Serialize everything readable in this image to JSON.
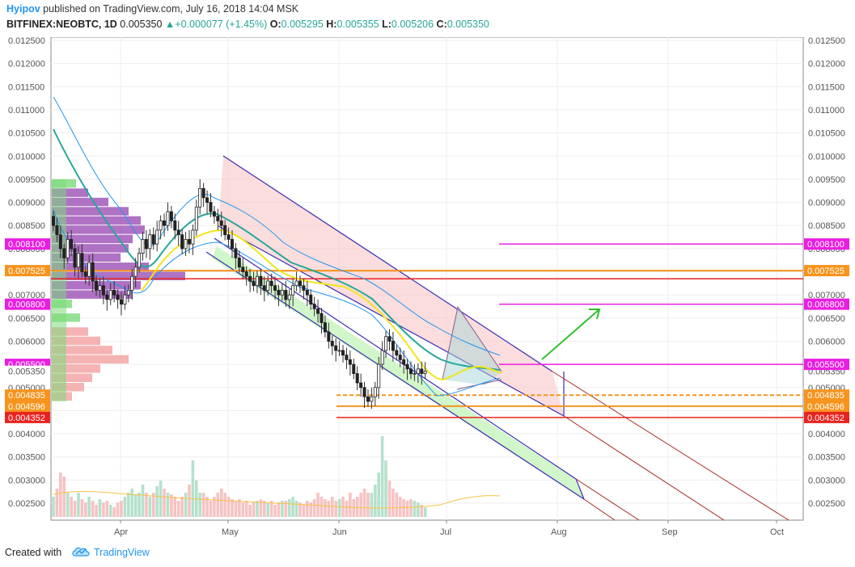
{
  "header": {
    "author": "Hyipov",
    "published_text": "published on TradingView.com, July 16, 2018 14:04 MSK",
    "symbol": "BITFINEX:NEOBTC, 1D",
    "price": "0.005350",
    "change": "+0.000077 (+1.45%)",
    "o_label": "O:",
    "o_value": "0.005295",
    "h_label": "H:",
    "h_value": "0.005355",
    "l_label": "L:",
    "l_value": "0.005206",
    "c_label": "C:",
    "c_value": "0.005350",
    "up_arrow": "▲"
  },
  "footer": {
    "created_with": "Created with",
    "brand": "TradingView"
  },
  "chart_data": {
    "type": "candlestick",
    "symbol": "NEOBTC",
    "exchange": "BITFINEX",
    "timeframe": "1D",
    "x_labels": [
      "Apr",
      "May",
      "Jun",
      "Jul",
      "Aug",
      "Sep",
      "Oct"
    ],
    "y_ticks": [
      "0.012500",
      "0.012000",
      "0.011500",
      "0.011000",
      "0.010500",
      "0.010000",
      "0.009500",
      "0.009000",
      "0.008500",
      "0.008000",
      "0.007500",
      "0.007000",
      "0.006500",
      "0.006000",
      "0.005500",
      "0.005000",
      "0.004500",
      "0.004000",
      "0.003500",
      "0.003000",
      "0.002500"
    ],
    "right_extra_tick": "0.005350",
    "left_tags": [
      {
        "text": "0.008100",
        "color": "#e91ee0"
      },
      {
        "text": "0.007525",
        "color": "#f7941d"
      },
      {
        "text": "0.006800",
        "color": "#e91ee0"
      },
      {
        "text": "0.005500",
        "color": "#e91ee0"
      },
      {
        "text": "0.005350",
        "color": "none"
      },
      {
        "text": "0.004835",
        "color": "#f7941d"
      },
      {
        "text": "0.004596",
        "color": "#f7941d"
      },
      {
        "text": "0.004352",
        "color": "#e8231f"
      }
    ],
    "right_tags": [
      {
        "text": "0.008100",
        "color": "#e91ee0"
      },
      {
        "text": "0.007525",
        "color": "#f7941d"
      },
      {
        "text": "0.006800",
        "color": "#e91ee0"
      },
      {
        "text": "0.005500",
        "color": "#e91ee0"
      },
      {
        "text": "0.004835",
        "color": "#f7941d"
      },
      {
        "text": "0.004596",
        "color": "#f7941d"
      },
      {
        "text": "0.004352",
        "color": "#e8231f"
      }
    ],
    "horizontal_levels": [
      {
        "value": 0.0081,
        "color": "#e91ee0",
        "style": "solid"
      },
      {
        "value": 0.007525,
        "color": "#f7941d",
        "style": "solid"
      },
      {
        "value": 0.0068,
        "color": "#e91ee0",
        "style": "solid"
      },
      {
        "value": 0.0055,
        "color": "#e91ee0",
        "style": "solid"
      },
      {
        "value": 0.004835,
        "color": "#f7941d",
        "style": "dashed"
      },
      {
        "value": 0.004596,
        "color": "#f7941d",
        "style": "solid"
      },
      {
        "value": 0.004352,
        "color": "#e8231f",
        "style": "solid"
      },
      {
        "value": 0.00735,
        "color": "#e8231f",
        "style": "solid"
      }
    ],
    "closes": [
      0.0085,
      0.0083,
      0.008,
      0.0078,
      0.0082,
      0.008,
      0.0076,
      0.0079,
      0.0075,
      0.0074,
      0.0077,
      0.0073,
      0.0071,
      0.0072,
      0.007,
      0.0069,
      0.0071,
      0.007,
      0.0069,
      0.0068,
      0.007,
      0.0071,
      0.0074,
      0.0076,
      0.0079,
      0.0082,
      0.008,
      0.0083,
      0.0081,
      0.0084,
      0.0086,
      0.0085,
      0.0088,
      0.0086,
      0.0084,
      0.0083,
      0.008,
      0.0082,
      0.0081,
      0.0084,
      0.0089,
      0.0093,
      0.0091,
      0.009,
      0.0088,
      0.0087,
      0.0086,
      0.0085,
      0.0083,
      0.0082,
      0.008,
      0.0078,
      0.0076,
      0.0075,
      0.0074,
      0.0073,
      0.0072,
      0.0074,
      0.0072,
      0.0071,
      0.0073,
      0.0072,
      0.0071,
      0.007,
      0.0071,
      0.0069,
      0.007,
      0.0072,
      0.0073,
      0.0072,
      0.0071,
      0.007,
      0.0068,
      0.0067,
      0.0066,
      0.0064,
      0.0062,
      0.006,
      0.0059,
      0.0058,
      0.0058,
      0.0057,
      0.0056,
      0.0055,
      0.0053,
      0.0051,
      0.005,
      0.0048,
      0.0047,
      0.0048,
      0.005,
      0.0055,
      0.0058,
      0.0061,
      0.006,
      0.0058,
      0.0057,
      0.0056,
      0.0055,
      0.0054,
      0.0053,
      0.0053,
      0.0054,
      0.0053,
      0.00535
    ],
    "volumes": [
      0.25,
      0.35,
      0.55,
      0.5,
      0.3,
      0.25,
      0.2,
      0.3,
      0.22,
      0.18,
      0.25,
      0.2,
      0.15,
      0.22,
      0.18,
      0.2,
      0.15,
      0.12,
      0.18,
      0.2,
      0.25,
      0.3,
      0.35,
      0.28,
      0.3,
      0.4,
      0.3,
      0.25,
      0.3,
      0.38,
      0.45,
      0.35,
      0.3,
      0.28,
      0.25,
      0.2,
      0.25,
      0.3,
      0.4,
      0.7,
      0.45,
      0.3,
      0.3,
      0.25,
      0.2,
      0.25,
      0.3,
      0.35,
      0.3,
      0.25,
      0.22,
      0.2,
      0.22,
      0.18,
      0.2,
      0.15,
      0.18,
      0.2,
      0.22,
      0.2,
      0.18,
      0.2,
      0.15,
      0.18,
      0.2,
      0.2,
      0.22,
      0.25,
      0.2,
      0.18,
      0.15,
      0.2,
      0.18,
      0.22,
      0.3,
      0.25,
      0.22,
      0.2,
      0.25,
      0.2,
      0.22,
      0.25,
      0.2,
      0.3,
      0.22,
      0.25,
      0.3,
      0.35,
      0.3,
      0.3,
      0.4,
      0.55,
      1.0,
      0.7,
      0.45,
      0.35,
      0.3,
      0.25,
      0.22,
      0.2,
      0.22,
      0.2,
      0.18,
      0.15,
      0.12
    ],
    "y_range": [
      0.002,
      0.0127
    ],
    "grid": true
  },
  "colors": {
    "up": "#26a69a",
    "down": "#ef5350",
    "accent": "#2196f3",
    "magenta": "#e91ee0",
    "orange": "#f7941d",
    "red": "#e8231f"
  }
}
